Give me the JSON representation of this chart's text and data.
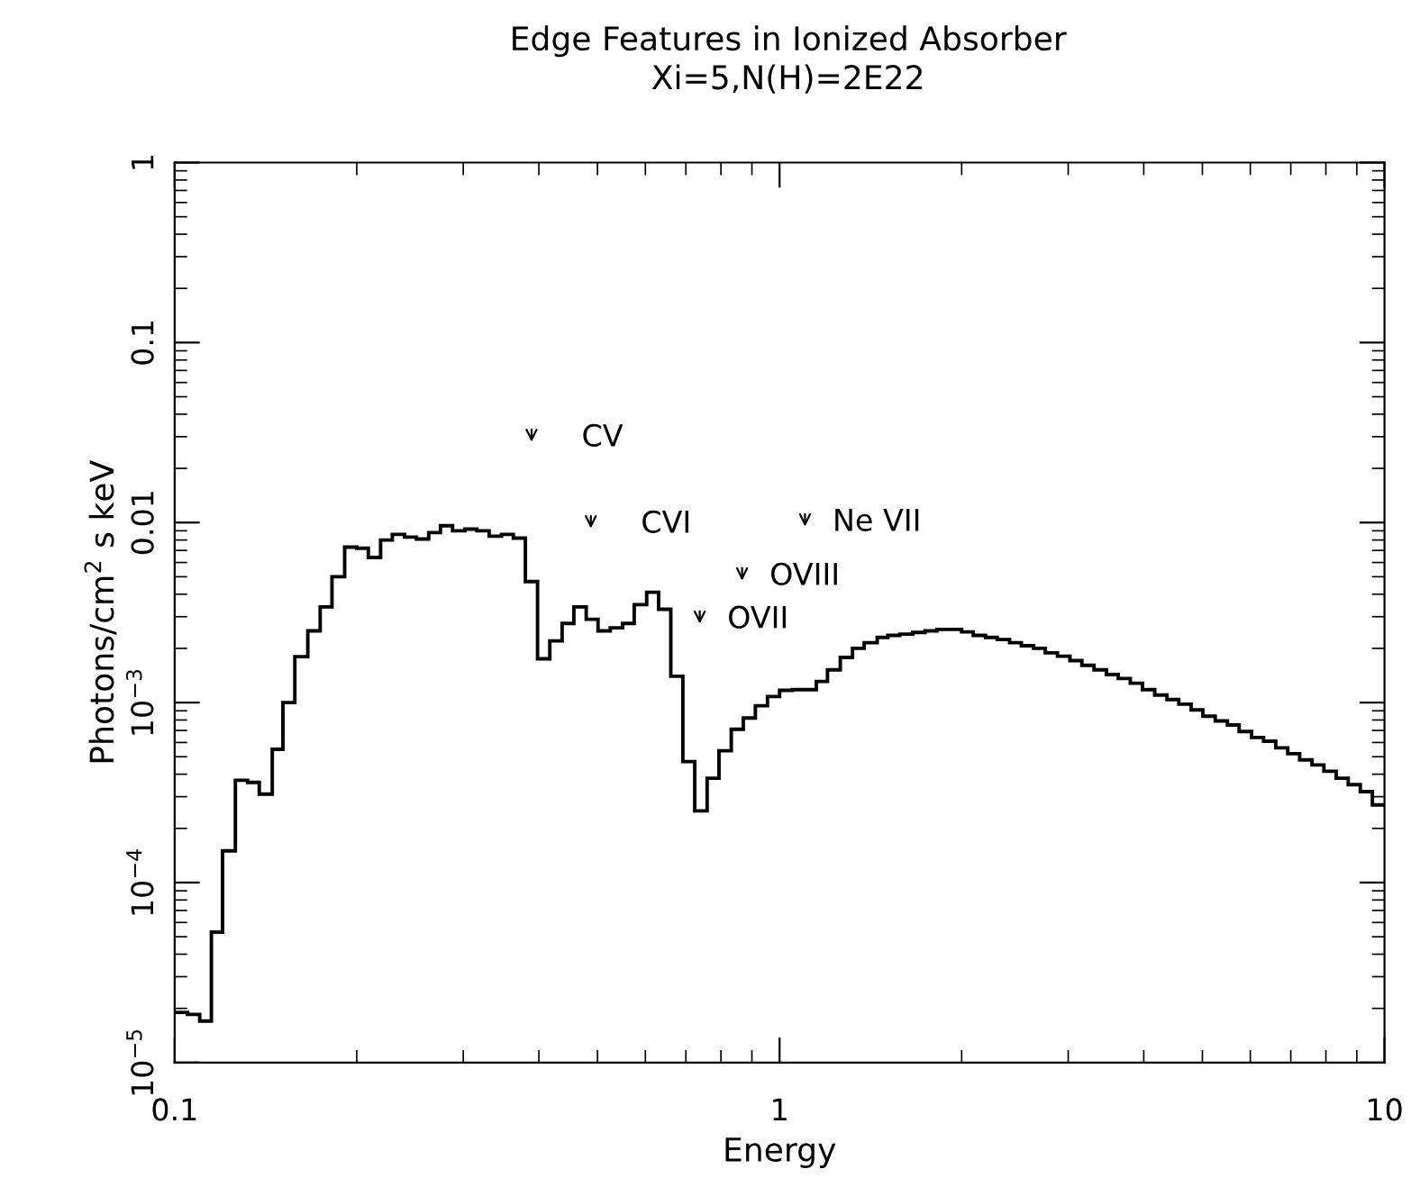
{
  "chart_data": {
    "type": "histogram",
    "title": "Edge Features in Ionized Absorber",
    "subtitle": "Xi=5,N(H)=2E22",
    "xlabel": "Energy",
    "ylabel": "Photons/cm$^{2}$ s keV",
    "bins": [
      0.1,
      0.105,
      0.11,
      0.115,
      0.12,
      0.126,
      0.132,
      0.138,
      0.145,
      0.151,
      0.158,
      0.166,
      0.174,
      0.182,
      0.191,
      0.2,
      0.209,
      0.219,
      0.229,
      0.24,
      0.251,
      0.263,
      0.275,
      0.288,
      0.302,
      0.316,
      0.331,
      0.347,
      0.363,
      0.38,
      0.398,
      0.417,
      0.437,
      0.457,
      0.479,
      0.501,
      0.525,
      0.55,
      0.575,
      0.603,
      0.631,
      0.661,
      0.692,
      0.724,
      0.759,
      0.794,
      0.832,
      0.871,
      0.912,
      0.955,
      1,
      1.05,
      1.1,
      1.15,
      1.2,
      1.26,
      1.32,
      1.38,
      1.45,
      1.51,
      1.58,
      1.66,
      1.74,
      1.82,
      1.91,
      2,
      2.09,
      2.19,
      2.29,
      2.4,
      2.51,
      2.63,
      2.75,
      2.88,
      3.02,
      3.16,
      3.31,
      3.47,
      3.63,
      3.8,
      3.98,
      4.17,
      4.37,
      4.57,
      4.79,
      5.01,
      5.25,
      5.5,
      5.75,
      6.03,
      6.31,
      6.61,
      6.92,
      7.24,
      7.59,
      7.94,
      8.32,
      8.71,
      9.12,
      9.55,
      10
    ],
    "values": [
      1.9e-05,
      1.85e-05,
      1.7e-05,
      5.3e-05,
      0.00015,
      0.00037,
      0.00036,
      0.00031,
      0.00055,
      0.001,
      0.0018,
      0.0025,
      0.0034,
      0.005,
      0.0073,
      0.0072,
      0.0064,
      0.008,
      0.0086,
      0.0083,
      0.0081,
      0.0088,
      0.0096,
      0.009,
      0.0092,
      0.009,
      0.0084,
      0.0086,
      0.0082,
      0.0047,
      0.00175,
      0.0022,
      0.00275,
      0.0034,
      0.0029,
      0.0025,
      0.0026,
      0.00275,
      0.0035,
      0.0041,
      0.0033,
      0.0014,
      0.00047,
      0.00025,
      0.00038,
      0.00054,
      0.00071,
      0.00082,
      0.00096,
      0.00108,
      0.00117,
      0.00118,
      0.00118,
      0.00131,
      0.00152,
      0.00178,
      0.002,
      0.00215,
      0.0023,
      0.00236,
      0.0024,
      0.00245,
      0.0025,
      0.00255,
      0.00255,
      0.00247,
      0.00236,
      0.0023,
      0.00224,
      0.00215,
      0.00207,
      0.002,
      0.00189,
      0.00181,
      0.00171,
      0.00161,
      0.00152,
      0.00143,
      0.00136,
      0.00128,
      0.00118,
      0.0011,
      0.00104,
      0.00098,
      0.00091,
      0.00084,
      0.00079,
      0.00075,
      0.00069,
      0.00064,
      0.00061,
      0.00056,
      0.00052,
      0.00048,
      0.00045,
      0.000415,
      0.00038,
      0.00035,
      0.00032,
      0.00027
    ],
    "color": "#000000",
    "log": "xy",
    "xlim": [
      0.1,
      10
    ],
    "xticks": [
      0.1,
      1,
      10
    ],
    "ylim": [
      1e-05,
      1
    ],
    "yticks": [
      {
        "value": 1e-05,
        "label": "10$^{−5}$"
      },
      {
        "value": 0.0001,
        "label": "10$^{−4}$"
      },
      {
        "value": 0.001,
        "label": "10$^{−3}$"
      },
      0.01,
      0.1,
      1
    ],
    "grid": false,
    "annotations": [
      "CV",
      "CVI",
      "Ne VII",
      "OVIII",
      "OVII"
    ]
  }
}
